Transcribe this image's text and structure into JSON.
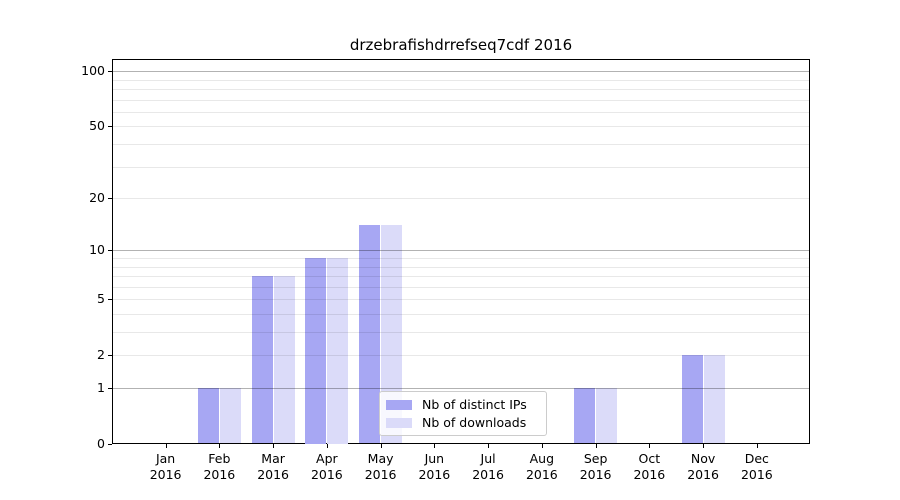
{
  "figure": {
    "title": "drzebrafishdrrefseq7cdf 2016"
  },
  "chart_data": {
    "type": "bar",
    "title": "drzebrafishdrrefseq7cdf 2016",
    "scale": "log1p",
    "grid": "on",
    "legend_position": "lower center",
    "ylim": [
      0,
      117
    ],
    "yticks": [
      0,
      1,
      2,
      5,
      10,
      20,
      50,
      100
    ],
    "gridlines": {
      "major": [
        1,
        10,
        100
      ],
      "minor": [
        2,
        3,
        4,
        5,
        6,
        7,
        8,
        9,
        20,
        30,
        40,
        50,
        60,
        70,
        80,
        90
      ]
    },
    "categories": [
      {
        "month": "Jan",
        "year": "2016"
      },
      {
        "month": "Feb",
        "year": "2016"
      },
      {
        "month": "Mar",
        "year": "2016"
      },
      {
        "month": "Apr",
        "year": "2016"
      },
      {
        "month": "May",
        "year": "2016"
      },
      {
        "month": "Jun",
        "year": "2016"
      },
      {
        "month": "Jul",
        "year": "2016"
      },
      {
        "month": "Aug",
        "year": "2016"
      },
      {
        "month": "Sep",
        "year": "2016"
      },
      {
        "month": "Oct",
        "year": "2016"
      },
      {
        "month": "Nov",
        "year": "2016"
      },
      {
        "month": "Dec",
        "year": "2016"
      }
    ],
    "series": [
      {
        "name": "Nb of distinct IPs",
        "color": "#a7a7f3",
        "values": [
          0,
          1,
          7,
          9,
          14,
          0,
          0,
          0,
          1,
          0,
          2,
          0
        ]
      },
      {
        "name": "Nb of downloads",
        "color": "#dbdbf9",
        "values": [
          0,
          1,
          7,
          9,
          14,
          0,
          0,
          0,
          1,
          0,
          2,
          0
        ]
      }
    ]
  }
}
